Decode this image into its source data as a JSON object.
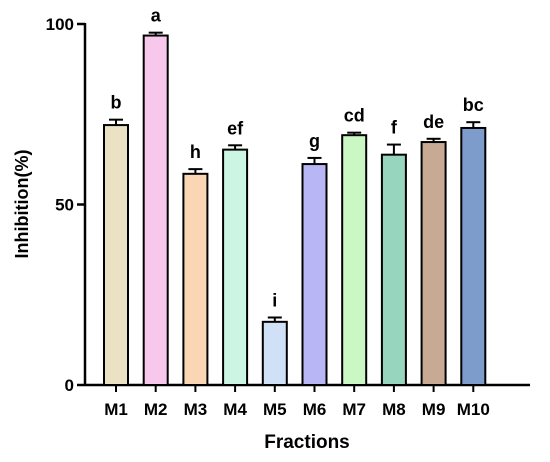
{
  "chart_data": {
    "type": "bar",
    "title": "",
    "xlabel": "Fractions",
    "ylabel": "Inhibition(%)",
    "ylim": [
      0,
      100
    ],
    "yticks": [
      "0",
      "50",
      "100"
    ],
    "grid": false,
    "categories": [
      "M1",
      "M2",
      "M3",
      "M4",
      "M5",
      "M6",
      "M7",
      "M8",
      "M9",
      "M10"
    ],
    "values": [
      72,
      96.8,
      58.5,
      65.2,
      17.5,
      61.2,
      69.2,
      63.8,
      67.3,
      71.2
    ],
    "errors": [
      1.5,
      0.8,
      1.3,
      1.2,
      1.2,
      1.7,
      0.7,
      2.8,
      0.9,
      1.6
    ],
    "significance": [
      "b",
      "a",
      "h",
      "ef",
      "i",
      "g",
      "cd",
      "f",
      "de",
      "bc"
    ],
    "colors": [
      "#ebe2c4",
      "#f7c8ec",
      "#fad6b4",
      "#cdf5e3",
      "#cfe0f7",
      "#b8b6f4",
      "#cbf7c5",
      "#98d5be",
      "#c7a994",
      "#7e9ccb"
    ]
  }
}
